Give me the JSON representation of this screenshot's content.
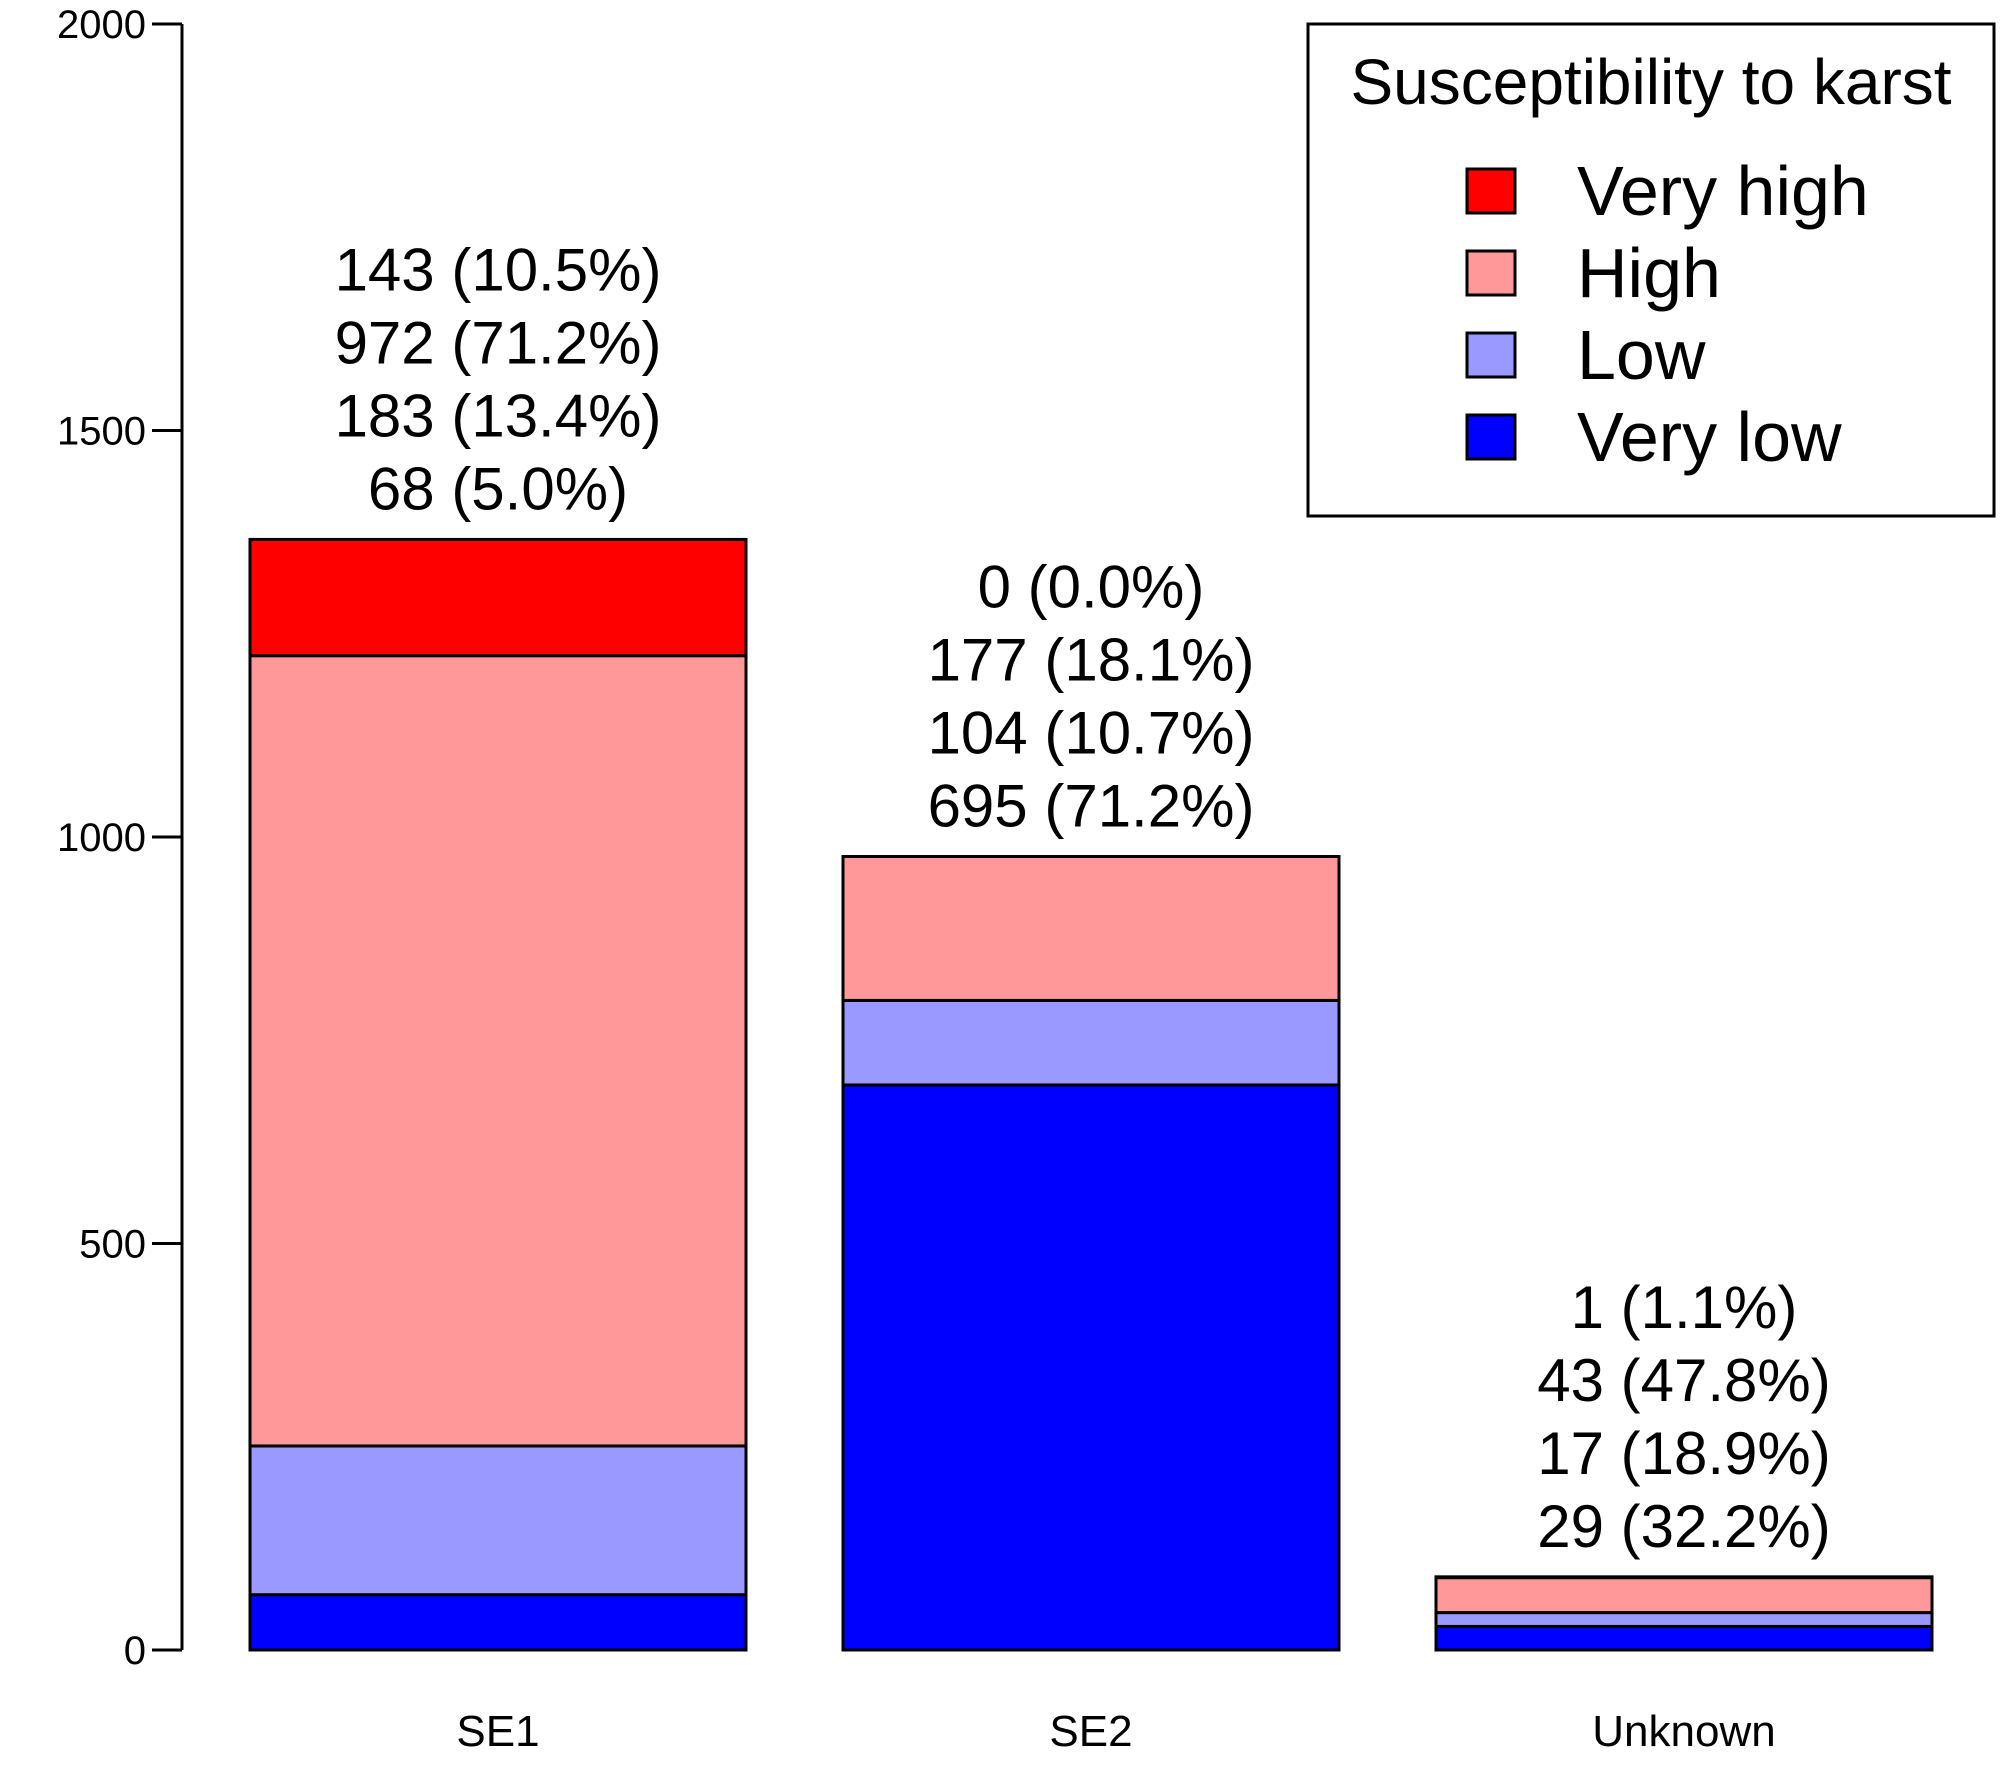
{
  "chart_data": {
    "type": "bar",
    "stacked": true,
    "categories": [
      "SE1",
      "SE2",
      "Unknown"
    ],
    "series": [
      {
        "name": "Very low",
        "color": "#0000FF",
        "values": [
          68,
          695,
          29
        ]
      },
      {
        "name": "Low",
        "color": "#9999FF",
        "values": [
          183,
          104,
          17
        ]
      },
      {
        "name": "High",
        "color": "#FF9999",
        "values": [
          972,
          177,
          43
        ]
      },
      {
        "name": "Very high",
        "color": "#FF0000",
        "values": [
          143,
          0,
          1
        ]
      }
    ],
    "annotations": [
      [
        "143 (10.5%)",
        "972 (71.2%)",
        "183 (13.4%)",
        "68 (5.0%)"
      ],
      [
        "0 (0.0%)",
        "177 (18.1%)",
        "104 (10.7%)",
        "695 (71.2%)"
      ],
      [
        "1 (1.1%)",
        "43 (47.8%)",
        "17 (18.9%)",
        "29 (32.2%)"
      ]
    ],
    "y_ticks": [
      "0",
      "500",
      "1000",
      "1500",
      "2000"
    ],
    "ylim": [
      0,
      2000
    ],
    "grid": false,
    "legend": {
      "title": "Susceptibility to karst",
      "position": "top-right",
      "entries": [
        {
          "label": "Very high",
          "color": "#FF0000"
        },
        {
          "label": "High",
          "color": "#FF9999"
        },
        {
          "label": "Low",
          "color": "#9999FF"
        },
        {
          "label": "Very low",
          "color": "#0000FF"
        }
      ]
    }
  }
}
